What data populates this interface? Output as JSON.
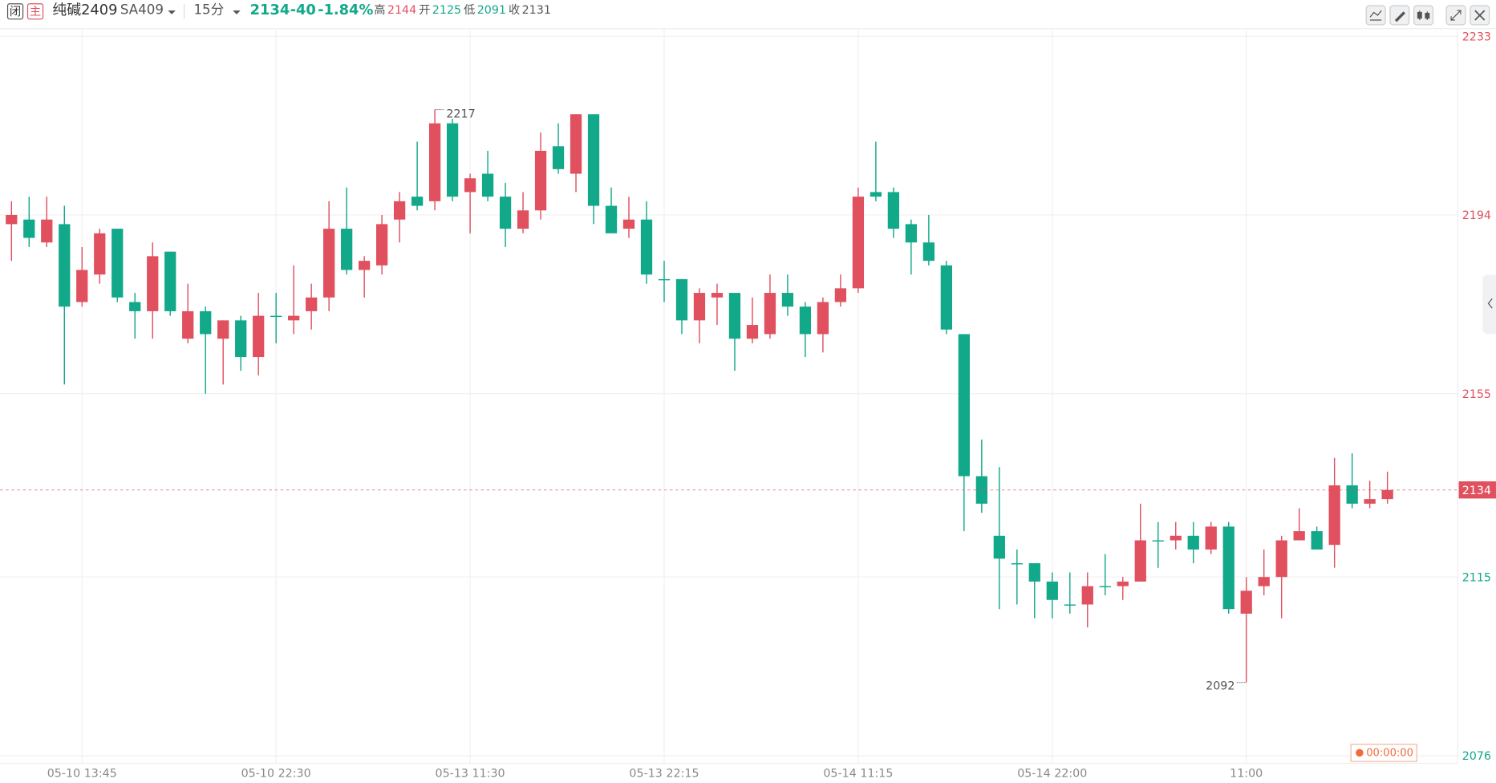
{
  "header": {
    "closed_icon": "闭",
    "main_icon": "主",
    "name": "纯碱2409",
    "symbol": "SA409",
    "period": "15分",
    "change": "-40",
    "change_pct": "-1.84%",
    "high_label": "高",
    "high": 2144,
    "open_label": "开",
    "open": 2125,
    "low_label": "低",
    "low": 2091,
    "close_label": "收",
    "close": 2131
  },
  "countdown": "00:00:00",
  "chart_data": {
    "type": "candlestick",
    "categories": [
      null,
      null,
      null,
      null,
      "05-10 13:45",
      null,
      null,
      null,
      null,
      null,
      null,
      null,
      null,
      null,
      null,
      "05-10 22:30",
      null,
      null,
      null,
      null,
      null,
      null,
      null,
      null,
      null,
      null,
      "05-13 11:30",
      null,
      null,
      null,
      null,
      null,
      null,
      null,
      null,
      null,
      null,
      "05-13 22:15",
      null,
      null,
      null,
      null,
      null,
      null,
      null,
      null,
      null,
      null,
      "05-14 11:15",
      null,
      null,
      null,
      null,
      null,
      null,
      null,
      null,
      null,
      null,
      "05-14 22:00",
      null,
      null,
      null,
      null,
      null,
      null,
      null,
      null,
      null,
      null,
      "11:00",
      null,
      null,
      null,
      null,
      null,
      null,
      null,
      null
    ],
    "open": [
      2192,
      2193,
      2188,
      2192,
      2175,
      2181,
      2191,
      2175,
      2173,
      2186,
      2167,
      2173,
      2167,
      2171,
      2163,
      2172,
      2171,
      2173,
      2176,
      2191,
      2182,
      2183,
      2193,
      2198,
      2197,
      2214,
      2199,
      2203,
      2198,
      2191,
      2195,
      2209,
      2203,
      2216,
      2196,
      2191,
      2193,
      2180,
      2180,
      2171,
      2176,
      2177,
      2167,
      2168,
      2177,
      2174,
      2168,
      2175,
      2178,
      2199,
      2199,
      2192,
      2188,
      2183,
      2168,
      2137,
      2124,
      2118,
      2118,
      2114,
      2109,
      2109,
      2113,
      2113,
      2114,
      2123,
      2123,
      2124,
      2121,
      2126,
      2107,
      2113,
      2115,
      2123,
      2125,
      2122,
      2135,
      2131,
      2132
    ],
    "high": [
      2197,
      2198,
      2198,
      2196,
      2187,
      2191,
      2191,
      2177,
      2188,
      2186,
      2179,
      2174,
      2171,
      2172,
      2177,
      2177,
      2183,
      2179,
      2197,
      2200,
      2185,
      2194,
      2199,
      2210,
      2217,
      2215,
      2203,
      2208,
      2201,
      2199,
      2212,
      2214,
      2216,
      2216,
      2200,
      2198,
      2197,
      2184,
      2180,
      2178,
      2179,
      2177,
      2176,
      2181,
      2181,
      2175,
      2176,
      2181,
      2200,
      2210,
      2200,
      2193,
      2194,
      2184,
      2168,
      2145,
      2139,
      2121,
      2118,
      2116,
      2116,
      2116,
      2120,
      2115,
      2131,
      2127,
      2127,
      2127,
      2127,
      2127,
      2115,
      2121,
      2124,
      2130,
      2126,
      2141,
      2142,
      2136,
      2138
    ],
    "low": [
      2184,
      2187,
      2187,
      2157,
      2174,
      2179,
      2175,
      2167,
      2167,
      2172,
      2166,
      2155,
      2157,
      2160,
      2159,
      2166,
      2168,
      2169,
      2173,
      2181,
      2176,
      2181,
      2188,
      2195,
      2195,
      2197,
      2190,
      2197,
      2187,
      2190,
      2193,
      2203,
      2199,
      2192,
      2190,
      2189,
      2179,
      2175,
      2168,
      2166,
      2170,
      2160,
      2166,
      2167,
      2172,
      2163,
      2164,
      2174,
      2177,
      2197,
      2189,
      2181,
      2183,
      2168,
      2125,
      2129,
      2108,
      2109,
      2106,
      2106,
      2107,
      2104,
      2111,
      2110,
      2114,
      2117,
      2121,
      2118,
      2120,
      2107,
      2092,
      2111,
      2106,
      2123,
      2121,
      2117,
      2130,
      2130,
      2131
    ],
    "close": [
      2194,
      2189,
      2193,
      2174,
      2182,
      2190,
      2176,
      2173,
      2185,
      2173,
      2173,
      2168,
      2171,
      2163,
      2172,
      2172,
      2172,
      2176,
      2191,
      2182,
      2184,
      2192,
      2197,
      2196,
      2214,
      2198,
      2202,
      2198,
      2191,
      2195,
      2208,
      2204,
      2216,
      2196,
      2190,
      2193,
      2181,
      2180,
      2171,
      2177,
      2177,
      2167,
      2170,
      2177,
      2174,
      2168,
      2175,
      2178,
      2198,
      2198,
      2191,
      2188,
      2184,
      2169,
      2137,
      2131,
      2119,
      2118,
      2114,
      2110,
      2109,
      2113,
      2113,
      2114,
      2123,
      2123,
      2124,
      2121,
      2126,
      2108,
      2112,
      2115,
      2123,
      2125,
      2121,
      2135,
      2131,
      2132,
      2134
    ],
    "up_color": "#e0505f",
    "down_color": "#12a88a",
    "last_price": 2134,
    "ylim": [
      2076,
      2233
    ],
    "yticks": [
      2233,
      2194,
      2155,
      2115,
      2076
    ],
    "grid": true
  }
}
